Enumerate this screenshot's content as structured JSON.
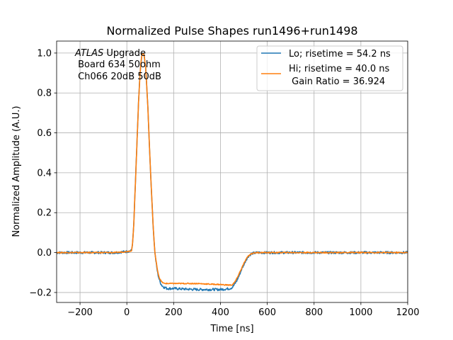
{
  "chart_data": {
    "type": "line",
    "title": "Normalized Pulse Shapes run1496+run1498",
    "xlabel": "Time [ns]",
    "ylabel": "Normalized Amplitude (A.U.)",
    "xlim": [
      -300,
      1200
    ],
    "ylim": [
      -0.25,
      1.06
    ],
    "xticks": [
      -200,
      0,
      200,
      400,
      600,
      800,
      1000,
      1200
    ],
    "xtick_labels": [
      "−200",
      "0",
      "200",
      "400",
      "600",
      "800",
      "1000",
      "1200"
    ],
    "yticks": [
      -0.2,
      0.0,
      0.2,
      0.4,
      0.6,
      0.8,
      1.0
    ],
    "ytick_labels": [
      "−0.2",
      "0.0",
      "0.2",
      "0.4",
      "0.6",
      "0.8",
      "1.0"
    ],
    "grid": true,
    "legend_position": "top-right",
    "annotation": {
      "italic": "ATLAS",
      "line1_rest": " Upgrade",
      "line2": " Board 634 50ohm",
      "line3": " Ch066 20dB 50dB"
    },
    "series": [
      {
        "name": "Lo; risetime = 54.2 ns",
        "color": "#1f77b4",
        "x": [
          -300,
          -250,
          -200,
          -150,
          -100,
          -50,
          0,
          20,
          25,
          30,
          35,
          40,
          45,
          50,
          55,
          60,
          65,
          70,
          75,
          80,
          85,
          90,
          95,
          100,
          105,
          110,
          115,
          120,
          125,
          130,
          135,
          140,
          145,
          150,
          155,
          160,
          165,
          170,
          180,
          200,
          250,
          300,
          350,
          400,
          420,
          440,
          450,
          460,
          470,
          480,
          490,
          500,
          510,
          520,
          530,
          540,
          560,
          600,
          700,
          800,
          900,
          1000,
          1100,
          1200
        ],
        "y": [
          0.0,
          0.0,
          0.0,
          0.0,
          0.0,
          0.0,
          0.005,
          0.01,
          0.05,
          0.15,
          0.3,
          0.45,
          0.6,
          0.75,
          0.87,
          0.95,
          0.995,
          1.0,
          0.98,
          0.93,
          0.84,
          0.72,
          0.58,
          0.44,
          0.31,
          0.19,
          0.08,
          0.0,
          -0.05,
          -0.09,
          -0.12,
          -0.14,
          -0.155,
          -0.165,
          -0.17,
          -0.175,
          -0.175,
          -0.18,
          -0.18,
          -0.18,
          -0.183,
          -0.185,
          -0.185,
          -0.185,
          -0.183,
          -0.18,
          -0.175,
          -0.16,
          -0.14,
          -0.115,
          -0.085,
          -0.06,
          -0.035,
          -0.018,
          -0.008,
          -0.003,
          0.0,
          0.0,
          0.0,
          0.0,
          0.0,
          0.0,
          0.0,
          0.0
        ]
      },
      {
        "name": "Hi; risetime = 40.0 ns",
        "name_line2": " Gain Ratio = 36.924",
        "color": "#ff7f0e",
        "x": [
          -300,
          -250,
          -200,
          -150,
          -100,
          -50,
          0,
          20,
          25,
          30,
          35,
          40,
          45,
          50,
          55,
          60,
          65,
          70,
          75,
          80,
          85,
          90,
          95,
          100,
          105,
          110,
          115,
          120,
          125,
          130,
          135,
          140,
          145,
          150,
          155,
          160,
          165,
          170,
          180,
          200,
          250,
          300,
          350,
          400,
          420,
          440,
          450,
          460,
          470,
          480,
          490,
          500,
          510,
          520,
          530,
          540,
          560,
          600,
          700,
          800,
          900,
          1000,
          1100,
          1200
        ],
        "y": [
          0.0,
          0.0,
          0.0,
          0.0,
          0.0,
          0.0,
          0.005,
          0.01,
          0.05,
          0.15,
          0.3,
          0.45,
          0.6,
          0.75,
          0.87,
          0.95,
          0.995,
          1.0,
          0.98,
          0.93,
          0.84,
          0.72,
          0.58,
          0.44,
          0.31,
          0.19,
          0.08,
          0.0,
          -0.045,
          -0.08,
          -0.11,
          -0.13,
          -0.14,
          -0.148,
          -0.152,
          -0.155,
          -0.155,
          -0.155,
          -0.155,
          -0.155,
          -0.155,
          -0.155,
          -0.158,
          -0.16,
          -0.162,
          -0.163,
          -0.162,
          -0.15,
          -0.13,
          -0.105,
          -0.08,
          -0.055,
          -0.032,
          -0.016,
          -0.007,
          -0.002,
          0.0,
          0.0,
          0.0,
          0.0,
          0.0,
          0.0,
          0.0,
          0.0
        ]
      }
    ]
  }
}
